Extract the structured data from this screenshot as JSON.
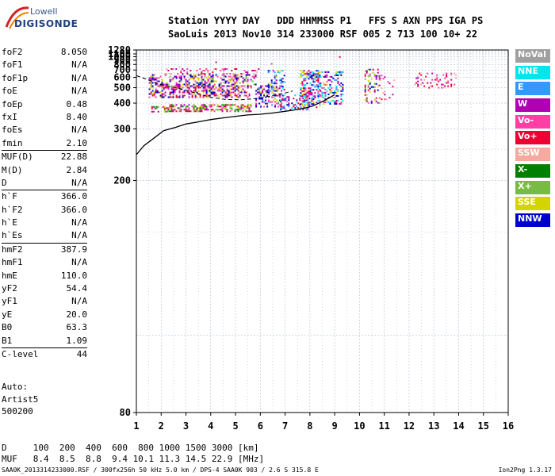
{
  "logo": {
    "line1": "Lowell",
    "line2": "DIGISONDE"
  },
  "header": {
    "line1": "Station YYYY DAY   DDD HHMMSS P1   FFS S AXN PPS IGA PS",
    "line2": "SaoLuis 2013 Nov10 314 233000 RSF 005 2 713 100 10+ 22"
  },
  "params": [
    [
      {
        "name": "foF2",
        "value": "8.050"
      },
      {
        "name": "foF1",
        "value": "N/A"
      },
      {
        "name": "foF1p",
        "value": "N/A"
      },
      {
        "name": "foE",
        "value": "N/A"
      },
      {
        "name": "foEp",
        "value": "0.48"
      },
      {
        "name": "fxI",
        "value": "8.40"
      },
      {
        "name": "foEs",
        "value": "N/A"
      },
      {
        "name": "fmin",
        "value": "2.10"
      }
    ],
    [
      {
        "name": "MUF(D)",
        "value": "22.88"
      },
      {
        "name": "M(D)",
        "value": "2.84"
      },
      {
        "name": "D",
        "value": "N/A"
      }
    ],
    [
      {
        "name": "h`F",
        "value": "366.0"
      },
      {
        "name": "h`F2",
        "value": "366.0"
      },
      {
        "name": "h`E",
        "value": "N/A"
      },
      {
        "name": "h`Es",
        "value": "N/A"
      }
    ],
    [
      {
        "name": "hmF2",
        "value": "387.9"
      },
      {
        "name": "hmF1",
        "value": "N/A"
      },
      {
        "name": "hmE",
        "value": "110.0"
      },
      {
        "name": "yF2",
        "value": "54.4"
      },
      {
        "name": "yF1",
        "value": "N/A"
      },
      {
        "name": "yE",
        "value": "20.0"
      },
      {
        "name": "B0",
        "value": "63.3"
      },
      {
        "name": "B1",
        "value": "1.09"
      }
    ],
    [
      {
        "name": "C-level",
        "value": "44"
      }
    ]
  ],
  "auto": {
    "line1": "Auto:",
    "line2": "Artist5",
    "line3": "500200"
  },
  "dmuf": {
    "line1": "D     100  200  400  600  800 1000 1500 3000 [km]",
    "line2": "MUF   8.4  8.5  8.8  9.4 10.1 11.3 14.5 22.9 [MHz]"
  },
  "footer": {
    "left": "SAA0K_2013314233000.RSF / 300fx256h 50 kHz 5.0 km / DPS-4 SAA0K 903 / 2.6 S 315.8 E",
    "right": "Ion2Png 1.3.17"
  },
  "legend": [
    {
      "label": "NoVal",
      "color": "#a0a0a0"
    },
    {
      "label": "NNE",
      "color": "#00e5ee"
    },
    {
      "label": "E",
      "color": "#3399ff"
    },
    {
      "label": "W",
      "color": "#b000b0"
    },
    {
      "label": "Vo-",
      "color": "#ff3fa6"
    },
    {
      "label": "Vo+",
      "color": "#ee0033"
    },
    {
      "label": "SSW",
      "color": "#f5aaa0"
    },
    {
      "label": "X-",
      "color": "#007f00"
    },
    {
      "label": "X+",
      "color": "#77bb44"
    },
    {
      "label": "SSE",
      "color": "#d4d400"
    },
    {
      "label": "NNW",
      "color": "#0000cc"
    }
  ],
  "chart_data": {
    "type": "scatter",
    "xlim": [
      1,
      16
    ],
    "ylim": [
      80,
      1280
    ],
    "x_ticks": [
      "1",
      "2",
      "3",
      "4",
      "5",
      "6",
      "7",
      "8",
      "9",
      "10",
      "11",
      "12",
      "13",
      "14",
      "15",
      "16"
    ],
    "y_ticks": [
      80,
      200,
      300,
      400,
      500,
      600,
      700,
      800,
      900,
      1000,
      1100,
      1280
    ],
    "y_scale": "inverse",
    "grid": true,
    "legend_position": "right",
    "clusters": [
      {
        "x": [
          1.6,
          2.2
        ],
        "y": [
          360,
          385
        ],
        "weights": [
          "X-",
          "X+",
          "Vo+",
          "W",
          "SSE"
        ],
        "density": 0.9
      },
      {
        "x": [
          2.2,
          5.6
        ],
        "y": [
          360,
          395
        ],
        "weights": [
          "X-",
          "X+",
          "Vo+",
          "W",
          "SSE",
          "Vo-"
        ],
        "density": 1.0
      },
      {
        "x": [
          1.5,
          5.6
        ],
        "y": [
          430,
          520
        ],
        "weights": [
          "W",
          "Vo-",
          "Vo+",
          "SSE",
          "NNW"
        ],
        "density": 0.85
      },
      {
        "x": [
          1.5,
          5.8
        ],
        "y": [
          520,
          640
        ],
        "weights": [
          "SSE",
          "W",
          "Vo-",
          "X+",
          "NNW"
        ],
        "density": 0.7
      },
      {
        "x": [
          2.0,
          6.0
        ],
        "y": [
          640,
          730
        ],
        "weights": [
          "Vo+",
          "Vo-",
          "SSW",
          "W"
        ],
        "density": 0.35
      },
      {
        "x": [
          5.8,
          6.9
        ],
        "y": [
          380,
          520
        ],
        "weights": [
          "W",
          "NNW",
          "Vo-",
          "SSE",
          "E"
        ],
        "density": 0.7
      },
      {
        "x": [
          6.3,
          7.0
        ],
        "y": [
          480,
          700
        ],
        "weights": [
          "SSE",
          "NNW",
          "W",
          "E",
          "NNE"
        ],
        "density": 0.55
      },
      {
        "x": [
          6.8,
          8.0
        ],
        "y": [
          370,
          450
        ],
        "weights": [
          "NNW",
          "NNE",
          "E",
          "W",
          "Vo+"
        ],
        "density": 0.75
      },
      {
        "x": [
          7.6,
          8.4
        ],
        "y": [
          380,
          700
        ],
        "weights": [
          "NNW",
          "E",
          "NNE",
          "W",
          "Vo-",
          "SSE",
          "Vo+"
        ],
        "density": 0.95
      },
      {
        "x": [
          8.4,
          9.3
        ],
        "y": [
          400,
          680
        ],
        "weights": [
          "NNW",
          "E",
          "W",
          "Vo-",
          "SSE",
          "NNE"
        ],
        "density": 0.65
      },
      {
        "x": [
          10.2,
          10.8
        ],
        "y": [
          400,
          720
        ],
        "weights": [
          "SSE",
          "NNW",
          "W",
          "Vo-",
          "X+",
          "Vo+"
        ],
        "density": 0.45
      },
      {
        "x": [
          10.8,
          11.4
        ],
        "y": [
          420,
          700
        ],
        "weights": [
          "Vo-",
          "Vo+",
          "SSW",
          "W"
        ],
        "density": 0.15
      },
      {
        "x": [
          12.2,
          13.9
        ],
        "y": [
          500,
          660
        ],
        "weights": [
          "Vo-",
          "Vo+",
          "W",
          "SSW"
        ],
        "density": 0.3
      },
      {
        "x": [
          7.0,
          9.2
        ],
        "y": [
          990,
          1020
        ],
        "weights": [
          "Vo-",
          "SSW",
          "W",
          "Vo+"
        ],
        "density": 0.12
      },
      {
        "x": [
          1.5,
          6.5
        ],
        "y": [
          700,
          1000
        ],
        "weights": [
          "Vo-",
          "NoVal",
          "W",
          "SSW"
        ],
        "density": 0.01
      }
    ],
    "trace": [
      [
        1.0,
        240
      ],
      [
        1.3,
        258
      ],
      [
        1.7,
        275
      ],
      [
        2.1,
        295
      ],
      [
        2.6,
        305
      ],
      [
        3.0,
        315
      ],
      [
        3.5,
        322
      ],
      [
        4.0,
        330
      ],
      [
        4.5,
        336
      ],
      [
        5.0,
        342
      ],
      [
        5.5,
        347
      ],
      [
        6.0,
        350
      ],
      [
        6.5,
        355
      ],
      [
        7.0,
        362
      ],
      [
        7.4,
        368
      ],
      [
        7.8,
        376
      ],
      [
        8.1,
        385
      ],
      [
        8.6,
        415
      ],
      [
        8.9,
        440
      ],
      [
        9.0,
        450
      ]
    ],
    "dashed_trace": [
      [
        1.0,
        620
      ],
      [
        1.3,
        590
      ],
      [
        1.6,
        560
      ],
      [
        1.8,
        540
      ],
      [
        2.1,
        520
      ],
      [
        2.6,
        500
      ],
      [
        3.1,
        475
      ],
      [
        3.6,
        450
      ],
      [
        4.1,
        430
      ],
      [
        4.6,
        420
      ],
      [
        5.2,
        418
      ],
      [
        5.8,
        425
      ],
      [
        6.4,
        440
      ],
      [
        7.0,
        460
      ],
      [
        7.3,
        475
      ]
    ]
  }
}
